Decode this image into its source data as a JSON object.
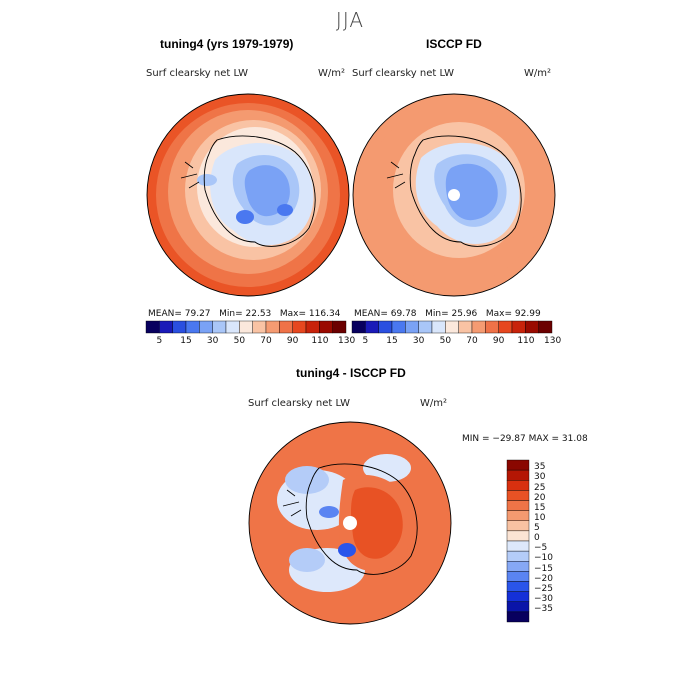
{
  "title": "JJA",
  "panels": [
    {
      "id": "model",
      "title": "tuning4 (yrs 1979-1979)",
      "variable": "Surf clearsky net LW",
      "units": "W/m²",
      "stats": {
        "mean_label": "MEAN=",
        "mean": "79.27",
        "min_label": "Min=",
        "min": "22.53",
        "max_label": "Max=",
        "max": "116.34"
      }
    },
    {
      "id": "obs",
      "title": "ISCCP FD",
      "variable": "Surf clearsky net LW",
      "units": "W/m²",
      "stats": {
        "mean_label": "MEAN=",
        "mean": "69.78",
        "min_label": "Min=",
        "min": "25.96",
        "max_label": "Max=",
        "max": "92.99"
      }
    },
    {
      "id": "diff",
      "title": "tuning4 - ISCCP FD",
      "variable": "Surf clearsky net LW",
      "units": "W/m²",
      "stats_text": "MIN = −29.87 MAX =  31.08"
    }
  ],
  "abs_colorbar": {
    "colors": [
      "#08005e",
      "#1a1ab8",
      "#2a4fe0",
      "#4a78f0",
      "#7aa2f5",
      "#a9c6f8",
      "#d9e6fb",
      "#fbe8dc",
      "#f9c3a4",
      "#f59b72",
      "#ef7248",
      "#e6471f",
      "#c8230b",
      "#9a0a00",
      "#6b0000"
    ],
    "labels": [
      "5",
      "15",
      "30",
      "50",
      "70",
      "90",
      "110",
      "130"
    ]
  },
  "diff_colorbar": {
    "colors": [
      "#08005e",
      "#0a14a8",
      "#1430d8",
      "#2a55ea",
      "#5a84f2",
      "#86a8f5",
      "#b4ccf8",
      "#dde8fb",
      "#fbe4d4",
      "#f8c2a2",
      "#f49a70",
      "#ef7447",
      "#e85224",
      "#d8300f",
      "#b41604",
      "#8a0700"
    ],
    "labels": [
      "35",
      "30",
      "25",
      "20",
      "15",
      "10",
      "5",
      "0",
      "−5",
      "−10",
      "−15",
      "−20",
      "−25",
      "−30",
      "−35"
    ]
  }
}
